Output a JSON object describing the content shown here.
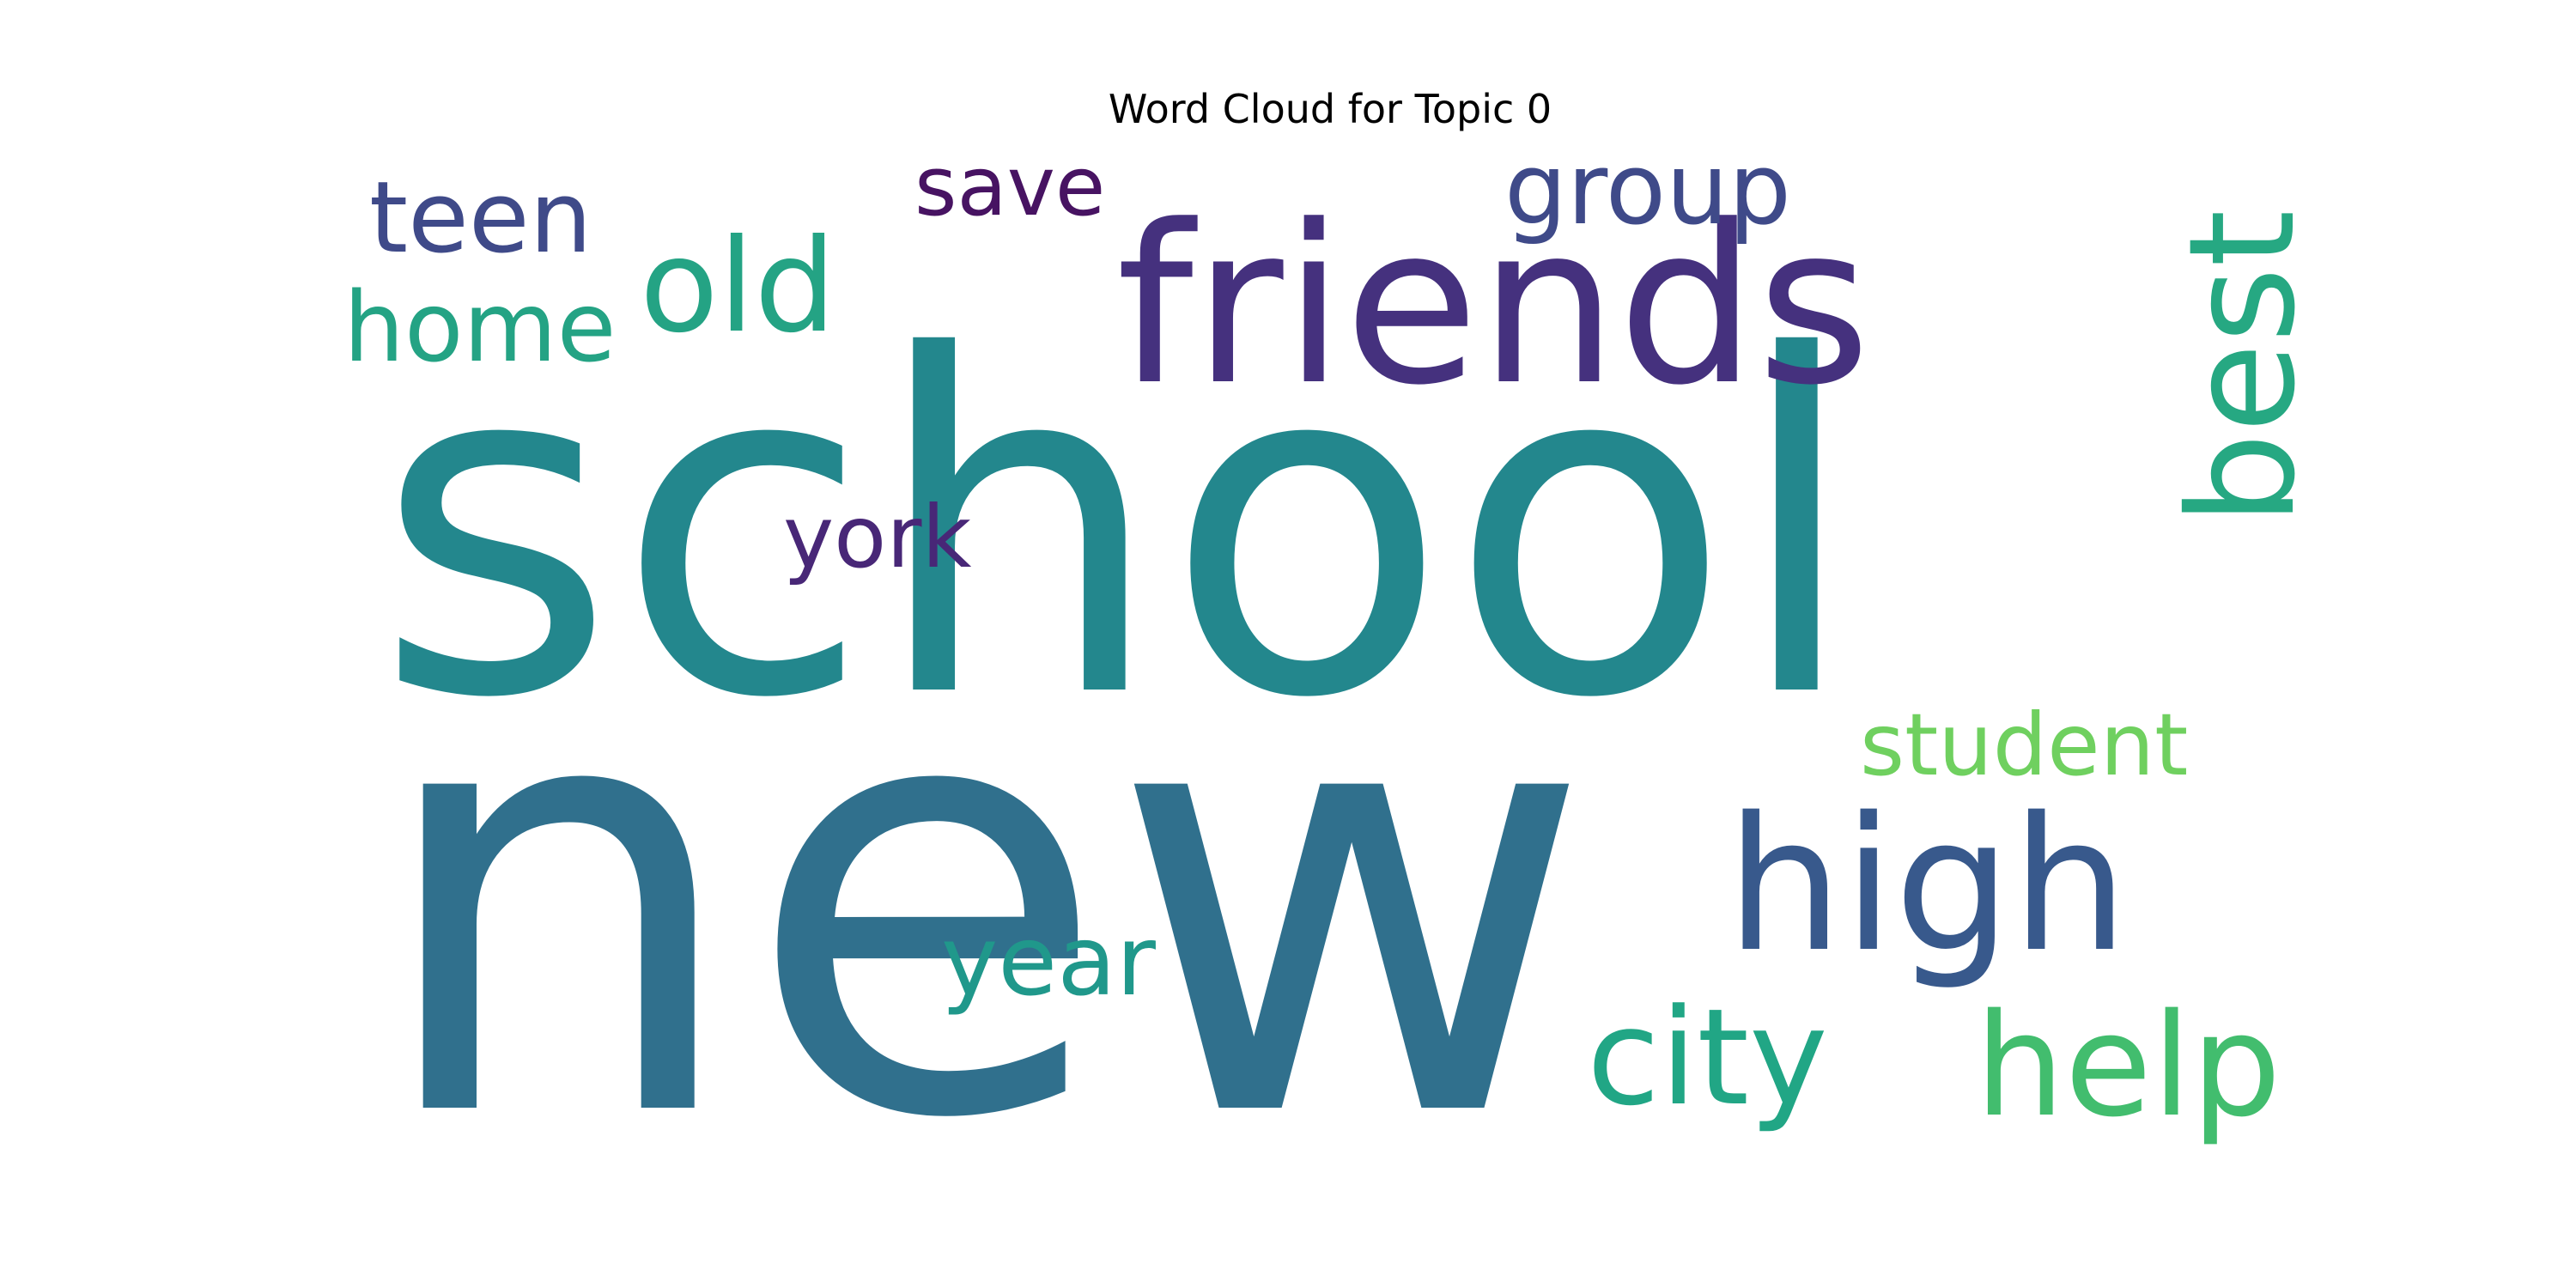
{
  "chart_data": {
    "type": "word_cloud",
    "title": "Word Cloud for Topic 0",
    "words": [
      {
        "text": "new",
        "color": "#30708d"
      },
      {
        "text": "school",
        "color": "#23878d"
      },
      {
        "text": "friends",
        "color": "#45317e"
      },
      {
        "text": "high",
        "color": "#38598c"
      },
      {
        "text": "best",
        "color": "#26a882"
      },
      {
        "text": "help",
        "color": "#42bd6e"
      },
      {
        "text": "city",
        "color": "#21a685"
      },
      {
        "text": "old",
        "color": "#24a384"
      },
      {
        "text": "group",
        "color": "#3f4a89"
      },
      {
        "text": "teen",
        "color": "#3f4a89"
      },
      {
        "text": "home",
        "color": "#24a384"
      },
      {
        "text": "save",
        "color": "#471362"
      },
      {
        "text": "york",
        "color": "#482777"
      },
      {
        "text": "student",
        "color": "#6fd05f"
      },
      {
        "text": "year",
        "color": "#20988b"
      }
    ]
  }
}
